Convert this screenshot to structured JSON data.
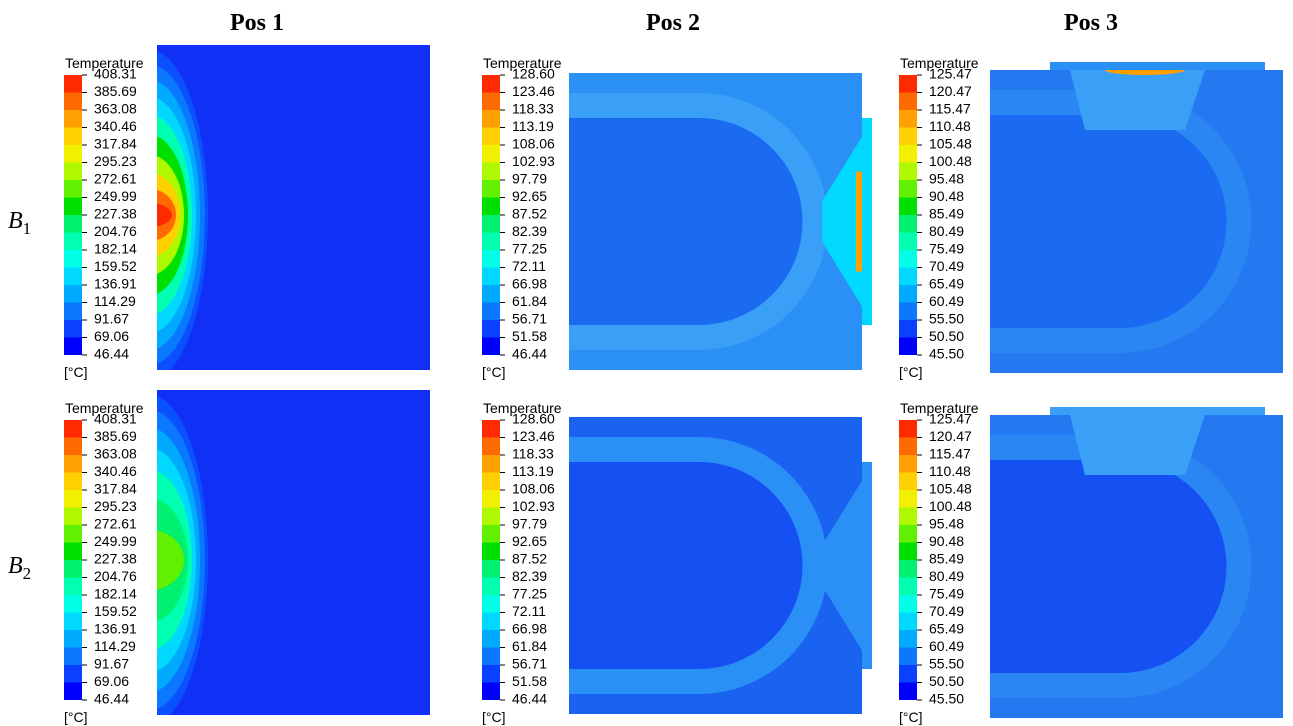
{
  "columns": [
    "Pos 1",
    "Pos 2",
    "Pos 3"
  ],
  "legend_colors": [
    "#0000ff",
    "#0a40ff",
    "#0a78ff",
    "#00aaff",
    "#00d8ff",
    "#00ffe6",
    "#00ffb0",
    "#00f070",
    "#00e000",
    "#60f000",
    "#b0f800",
    "#f0f000",
    "#ffd000",
    "#ffa000",
    "#ff6a00",
    "#ff2a00"
  ],
  "rows": [
    {
      "letter": "B",
      "sub": "1",
      "panels": [
        {
          "legend_title": "Temperature",
          "unit": "[°C]",
          "ticks": [
            "408.31",
            "385.69",
            "363.08",
            "340.46",
            "317.84",
            "295.23",
            "272.61",
            "249.99",
            "227.38",
            "204.76",
            "182.14",
            "159.52",
            "136.91",
            "114.29",
            "91.67",
            "69.06",
            "46.44"
          ]
        },
        {
          "legend_title": "Temperature",
          "unit": "[°C]",
          "ticks": [
            "128.60",
            "123.46",
            "118.33",
            "113.19",
            "108.06",
            "102.93",
            "97.79",
            "92.65",
            "87.52",
            "82.39",
            "77.25",
            "72.11",
            "66.98",
            "61.84",
            "56.71",
            "51.58",
            "46.44"
          ]
        },
        {
          "legend_title": "Temperature",
          "unit": "[°C]",
          "ticks": [
            "125.47",
            "120.47",
            "115.47",
            "110.48",
            "105.48",
            "100.48",
            "95.48",
            "90.48",
            "85.49",
            "80.49",
            "75.49",
            "70.49",
            "65.49",
            "60.49",
            "55.50",
            "50.50",
            "45.50"
          ]
        }
      ]
    },
    {
      "letter": "B",
      "sub": "2",
      "panels": [
        {
          "legend_title": "Temperature",
          "unit": "[°C]",
          "ticks": [
            "408.31",
            "385.69",
            "363.08",
            "340.46",
            "317.84",
            "295.23",
            "272.61",
            "249.99",
            "227.38",
            "204.76",
            "182.14",
            "159.52",
            "136.91",
            "114.29",
            "91.67",
            "69.06",
            "46.44"
          ]
        },
        {
          "legend_title": "Temperature",
          "unit": "[°C]",
          "ticks": [
            "128.60",
            "123.46",
            "118.33",
            "113.19",
            "108.06",
            "102.93",
            "97.79",
            "92.65",
            "87.52",
            "82.39",
            "77.25",
            "72.11",
            "66.98",
            "61.84",
            "56.71",
            "51.58",
            "46.44"
          ]
        },
        {
          "legend_title": "Temperature",
          "unit": "[°C]",
          "ticks": [
            "125.47",
            "120.47",
            "115.47",
            "110.48",
            "105.48",
            "100.48",
            "95.48",
            "90.48",
            "85.49",
            "80.49",
            "75.49",
            "70.49",
            "65.49",
            "60.49",
            "55.50",
            "50.50",
            "45.50"
          ]
        }
      ]
    }
  ]
}
